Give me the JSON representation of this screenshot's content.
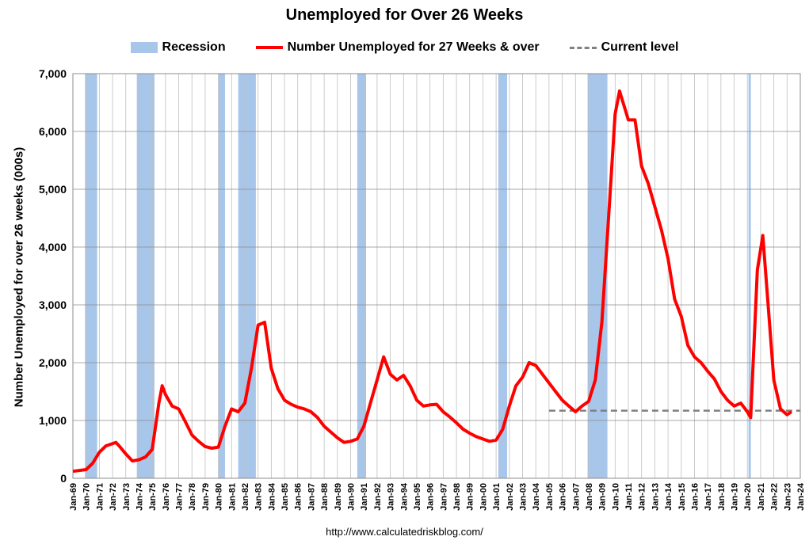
{
  "chart_data": {
    "type": "line",
    "title": "Unemployed for Over 26 Weeks",
    "ylabel": "Number Unemployed for over 26 weeks (000s)",
    "xlabel": "",
    "ylim": [
      0,
      7000
    ],
    "yticks": [
      0,
      1000,
      2000,
      3000,
      4000,
      5000,
      6000,
      7000
    ],
    "ytick_labels": [
      "0",
      "1,000",
      "2,000",
      "3,000",
      "4,000",
      "5,000",
      "6,000",
      "7,000"
    ],
    "xlim": [
      "Jan-69",
      "Jan-24"
    ],
    "xtick_labels": [
      "Jan-69",
      "Jan-70",
      "Jan-71",
      "Jan-72",
      "Jan-73",
      "Jan-74",
      "Jan-75",
      "Jan-76",
      "Jan-77",
      "Jan-78",
      "Jan-79",
      "Jan-80",
      "Jan-81",
      "Jan-82",
      "Jan-83",
      "Jan-84",
      "Jan-85",
      "Jan-86",
      "Jan-87",
      "Jan-88",
      "Jan-89",
      "Jan-90",
      "Jan-91",
      "Jan-92",
      "Jan-93",
      "Jan-94",
      "Jan-95",
      "Jan-96",
      "Jan-97",
      "Jan-98",
      "Jan-99",
      "Jan-00",
      "Jan-01",
      "Jan-02",
      "Jan-03",
      "Jan-04",
      "Jan-05",
      "Jan-06",
      "Jan-07",
      "Jan-08",
      "Jan-09",
      "Jan-10",
      "Jan-11",
      "Jan-12",
      "Jan-13",
      "Jan-14",
      "Jan-15",
      "Jan-16",
      "Jan-17",
      "Jan-18",
      "Jan-19",
      "Jan-20",
      "Jan-21",
      "Jan-22",
      "Jan-23",
      "Jan-24"
    ],
    "grid": "vertical and horizontal",
    "legend": {
      "placement": "top-center",
      "entries": [
        "Recession",
        "Number Unemployed for 27 Weeks & over",
        "Current level"
      ]
    },
    "recessions": [
      {
        "start": "Dec-69",
        "end": "Nov-70"
      },
      {
        "start": "Nov-73",
        "end": "Mar-75"
      },
      {
        "start": "Jan-80",
        "end": "Jul-80"
      },
      {
        "start": "Jul-81",
        "end": "Nov-82"
      },
      {
        "start": "Jul-90",
        "end": "Mar-91"
      },
      {
        "start": "Mar-01",
        "end": "Nov-01"
      },
      {
        "start": "Dec-07",
        "end": "Jun-09"
      },
      {
        "start": "Feb-20",
        "end": "Apr-20"
      }
    ],
    "current_level": {
      "value": 1170,
      "from": "Jan-05",
      "to": "Jan-24"
    },
    "series": [
      {
        "name": "Number Unemployed for 27 Weeks & over",
        "points": [
          [
            "Jan-69",
            120
          ],
          [
            "Jan-70",
            150
          ],
          [
            "Jul-70",
            260
          ],
          [
            "Jan-71",
            450
          ],
          [
            "Jul-71",
            560
          ],
          [
            "Apr-72",
            620
          ],
          [
            "Jul-72",
            560
          ],
          [
            "Jan-73",
            420
          ],
          [
            "Jul-73",
            300
          ],
          [
            "Jan-74",
            320
          ],
          [
            "Jul-74",
            370
          ],
          [
            "Jan-75",
            500
          ],
          [
            "Jul-75",
            1300
          ],
          [
            "Oct-75",
            1600
          ],
          [
            "Jan-76",
            1450
          ],
          [
            "Jul-76",
            1250
          ],
          [
            "Jan-77",
            1200
          ],
          [
            "Jul-77",
            980
          ],
          [
            "Jan-78",
            750
          ],
          [
            "Jul-78",
            640
          ],
          [
            "Jan-79",
            550
          ],
          [
            "Jul-79",
            520
          ],
          [
            "Jan-80",
            540
          ],
          [
            "Jul-80",
            900
          ],
          [
            "Jan-81",
            1200
          ],
          [
            "Jul-81",
            1150
          ],
          [
            "Jan-82",
            1300
          ],
          [
            "Jul-82",
            1900
          ],
          [
            "Jan-83",
            2650
          ],
          [
            "Jul-83",
            2700
          ],
          [
            "Jan-84",
            1900
          ],
          [
            "Jul-84",
            1550
          ],
          [
            "Jan-85",
            1350
          ],
          [
            "Jul-85",
            1280
          ],
          [
            "Jan-86",
            1230
          ],
          [
            "Jul-86",
            1200
          ],
          [
            "Jan-87",
            1150
          ],
          [
            "Jul-87",
            1050
          ],
          [
            "Jan-88",
            900
          ],
          [
            "Jul-88",
            800
          ],
          [
            "Jan-89",
            700
          ],
          [
            "Jul-89",
            620
          ],
          [
            "Jan-90",
            640
          ],
          [
            "Jul-90",
            680
          ],
          [
            "Jan-91",
            900
          ],
          [
            "Jul-91",
            1300
          ],
          [
            "Jan-92",
            1700
          ],
          [
            "Jul-92",
            2100
          ],
          [
            "Jan-93",
            1800
          ],
          [
            "Jul-93",
            1700
          ],
          [
            "Jan-94",
            1780
          ],
          [
            "Jul-94",
            1600
          ],
          [
            "Jan-95",
            1350
          ],
          [
            "Jul-95",
            1250
          ],
          [
            "Jan-96",
            1270
          ],
          [
            "Jul-96",
            1280
          ],
          [
            "Jan-97",
            1150
          ],
          [
            "Jul-97",
            1060
          ],
          [
            "Jan-98",
            960
          ],
          [
            "Jul-98",
            850
          ],
          [
            "Jan-99",
            780
          ],
          [
            "Jul-99",
            720
          ],
          [
            "Jan-00",
            680
          ],
          [
            "Jul-00",
            640
          ],
          [
            "Jan-01",
            660
          ],
          [
            "Jul-01",
            850
          ],
          [
            "Jan-02",
            1250
          ],
          [
            "Jul-02",
            1600
          ],
          [
            "Jan-03",
            1750
          ],
          [
            "Jul-03",
            2000
          ],
          [
            "Jan-04",
            1950
          ],
          [
            "Jul-04",
            1800
          ],
          [
            "Jan-05",
            1650
          ],
          [
            "Jul-05",
            1500
          ],
          [
            "Jan-06",
            1350
          ],
          [
            "Jul-06",
            1250
          ],
          [
            "Jan-07",
            1150
          ],
          [
            "Jul-07",
            1250
          ],
          [
            "Jan-08",
            1330
          ],
          [
            "Jul-08",
            1700
          ],
          [
            "Jan-09",
            2700
          ],
          [
            "Jul-09",
            4500
          ],
          [
            "Jan-10",
            6300
          ],
          [
            "May-10",
            6700
          ],
          [
            "Jan-11",
            6200
          ],
          [
            "Jul-11",
            6200
          ],
          [
            "Jan-12",
            5400
          ],
          [
            "Jul-12",
            5100
          ],
          [
            "Jan-13",
            4700
          ],
          [
            "Jul-13",
            4300
          ],
          [
            "Jan-14",
            3800
          ],
          [
            "Jul-14",
            3100
          ],
          [
            "Jan-15",
            2800
          ],
          [
            "Jul-15",
            2300
          ],
          [
            "Jan-16",
            2100
          ],
          [
            "Jul-16",
            2000
          ],
          [
            "Jan-17",
            1850
          ],
          [
            "Jul-17",
            1720
          ],
          [
            "Jan-18",
            1500
          ],
          [
            "Jul-18",
            1350
          ],
          [
            "Jan-19",
            1250
          ],
          [
            "Jul-19",
            1300
          ],
          [
            "Jan-20",
            1150
          ],
          [
            "Apr-20",
            1050
          ],
          [
            "Oct-20",
            3600
          ],
          [
            "Mar-21",
            4200
          ],
          [
            "Jul-21",
            3200
          ],
          [
            "Jan-22",
            1700
          ],
          [
            "Jul-22",
            1200
          ],
          [
            "Jan-23",
            1100
          ],
          [
            "May-23",
            1150
          ]
        ]
      }
    ],
    "colors": {
      "recession": "#a7c6ea",
      "series": "#ff0000",
      "current_level": "#808080",
      "grid": "#bfbfbf"
    }
  },
  "footer": {
    "source": "http://www.calculatedriskblog.com/"
  }
}
